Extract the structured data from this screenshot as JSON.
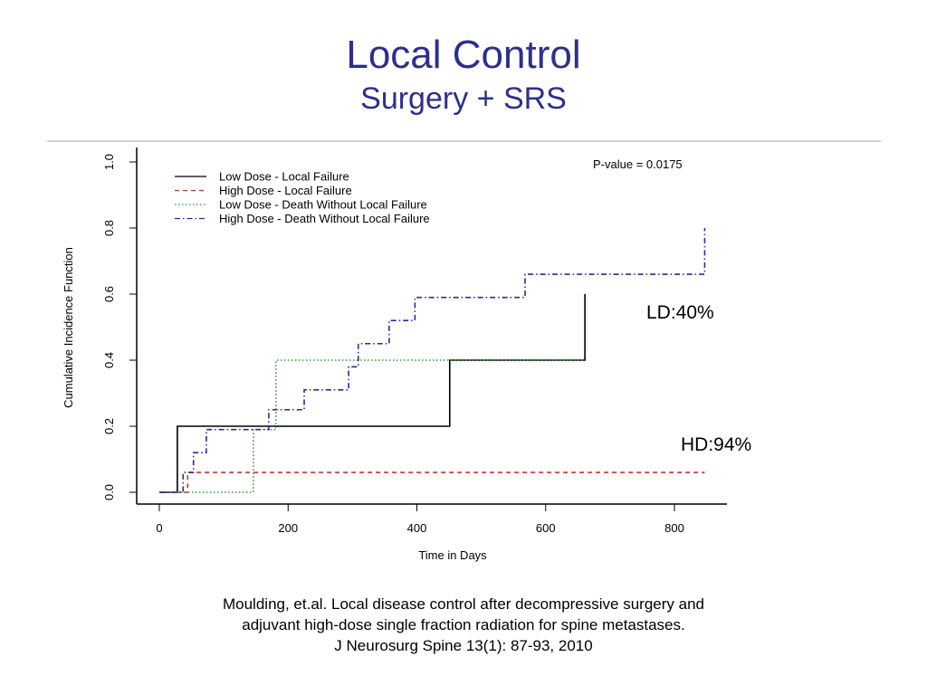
{
  "slide": {
    "title": "Local Control",
    "subtitle": "Surgery + SRS",
    "annotations": [
      "LD:40%",
      "HD:94%"
    ],
    "citation": [
      "Moulding, et.al. Local disease control after decompressive surgery and",
      "adjuvant high-dose single fraction radiation for spine metastases.",
      "J Neurosurg Spine 13(1): 87-93, 2010"
    ],
    "title_color": "#2e2e8f"
  },
  "chart_data": {
    "type": "line",
    "step": true,
    "xlabel": "Time in Days",
    "ylabel": "Cumulative Incidence Function",
    "xlim": [
      0,
      800
    ],
    "ylim": [
      0,
      1.0
    ],
    "xticks": [
      "0",
      "200",
      "400",
      "600",
      "800"
    ],
    "yticks": [
      "0.0",
      "0.2",
      "0.4",
      "0.6",
      "0.8",
      "1.0"
    ],
    "grid": false,
    "legend_position": "top-left",
    "annotation": "P-value = 0.0175",
    "series": [
      {
        "name": "Low Dose - Local Failure",
        "color": "#000000",
        "dash": "solid",
        "x": [
          0,
          28,
          451,
          661
        ],
        "y": [
          0,
          0.2,
          0.4,
          0.6
        ]
      },
      {
        "name": "High Dose - Local Failure",
        "color": "#cc3333",
        "dash": "dashed",
        "x": [
          0,
          44,
          847
        ],
        "y": [
          0,
          0.06,
          0.06
        ]
      },
      {
        "name": "Low Dose - Death Without Local Failure",
        "color": "#339933",
        "dash": "dotted",
        "x": [
          0,
          146,
          181,
          661
        ],
        "y": [
          0,
          0.19,
          0.4,
          0.4
        ]
      },
      {
        "name": "High Dose - Death Without Local Failure",
        "color": "#2a2aa0",
        "dash": "dotdash",
        "x": [
          0,
          37,
          53,
          73,
          170,
          225,
          294,
          309,
          357,
          397,
          568,
          847
        ],
        "y": [
          0,
          0.06,
          0.12,
          0.19,
          0.25,
          0.31,
          0.38,
          0.45,
          0.52,
          0.59,
          0.66,
          0.8
        ]
      }
    ]
  }
}
